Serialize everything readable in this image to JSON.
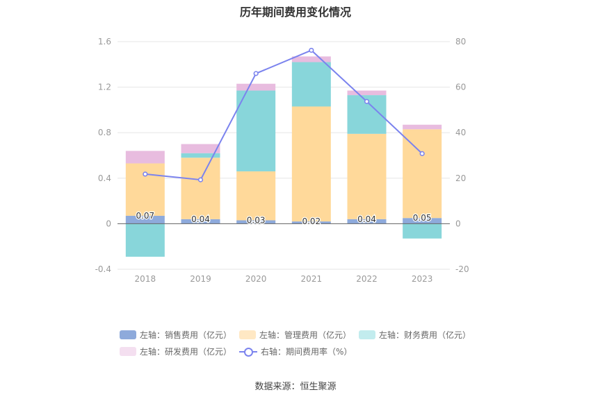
{
  "chart_data": {
    "type": "bar",
    "title": "历年期间费用变化情况",
    "categories": [
      "2018",
      "2019",
      "2020",
      "2021",
      "2022",
      "2023"
    ],
    "left_axis": {
      "ylim": [
        -0.4,
        1.6
      ],
      "ticks": [
        "-0.4",
        "0",
        "0.4",
        "0.8",
        "1.2",
        "1.6"
      ]
    },
    "right_axis": {
      "ylim": [
        -20,
        80
      ],
      "ticks": [
        "-20",
        "0",
        "20",
        "40",
        "60",
        "80"
      ]
    },
    "stacked": true,
    "series": [
      {
        "name": "左轴：销售费用（亿元）",
        "axis": "left",
        "color": "#8eaadb",
        "values": [
          0.07,
          0.04,
          0.03,
          0.02,
          0.04,
          0.05
        ],
        "labels": [
          "0.07",
          "0.04",
          "0.03",
          "0.02",
          "0.04",
          "0.05"
        ]
      },
      {
        "name": "左轴：管理费用（亿元）",
        "axis": "left",
        "color": "#ffd99a",
        "values": [
          0.46,
          0.54,
          0.43,
          1.01,
          0.75,
          0.78
        ]
      },
      {
        "name": "左轴：财务费用（亿元）",
        "axis": "left",
        "color": "#88d6da",
        "values": [
          -0.29,
          0.04,
          0.71,
          0.39,
          0.34,
          -0.13
        ]
      },
      {
        "name": "左轴：研发费用（亿元）",
        "axis": "left",
        "color": "#e8bcdf",
        "values": [
          0.11,
          0.08,
          0.06,
          0.05,
          0.04,
          0.04
        ]
      },
      {
        "name": "右轴：期间费用率（%）",
        "axis": "right",
        "type": "line",
        "color": "#7b83ee",
        "values": [
          21.8,
          19.3,
          66.0,
          76.2,
          53.7,
          30.8
        ]
      }
    ],
    "legend_position": "bottom",
    "grid": true
  },
  "legend_swatch_colors": [
    "#8eaadb",
    "#ffe8c4",
    "#c2ecee",
    "#f4dff0"
  ],
  "source": "数据来源：恒生聚源"
}
